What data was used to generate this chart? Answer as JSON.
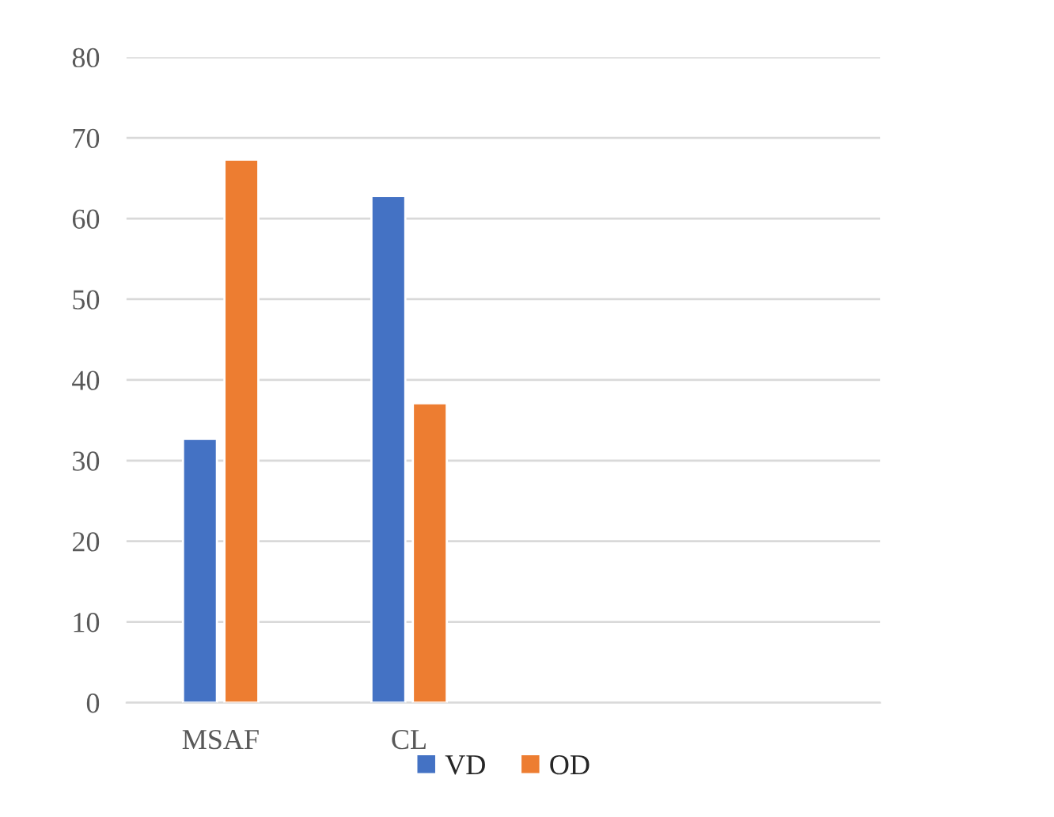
{
  "chart_data": {
    "type": "bar",
    "categories": [
      "MSAF",
      "CL",
      null,
      null
    ],
    "series": [
      {
        "name": "VD",
        "color": "#4472c4",
        "values": [
          32.7,
          62.8,
          null,
          null
        ]
      },
      {
        "name": "OD",
        "color": "#ed7d31",
        "values": [
          67.3,
          37.1,
          null,
          null
        ]
      }
    ],
    "ylim": [
      0,
      80
    ],
    "yticks": [
      0,
      10,
      20,
      30,
      40,
      50,
      60,
      70,
      80
    ],
    "grid": "y",
    "legend": "bottom"
  }
}
